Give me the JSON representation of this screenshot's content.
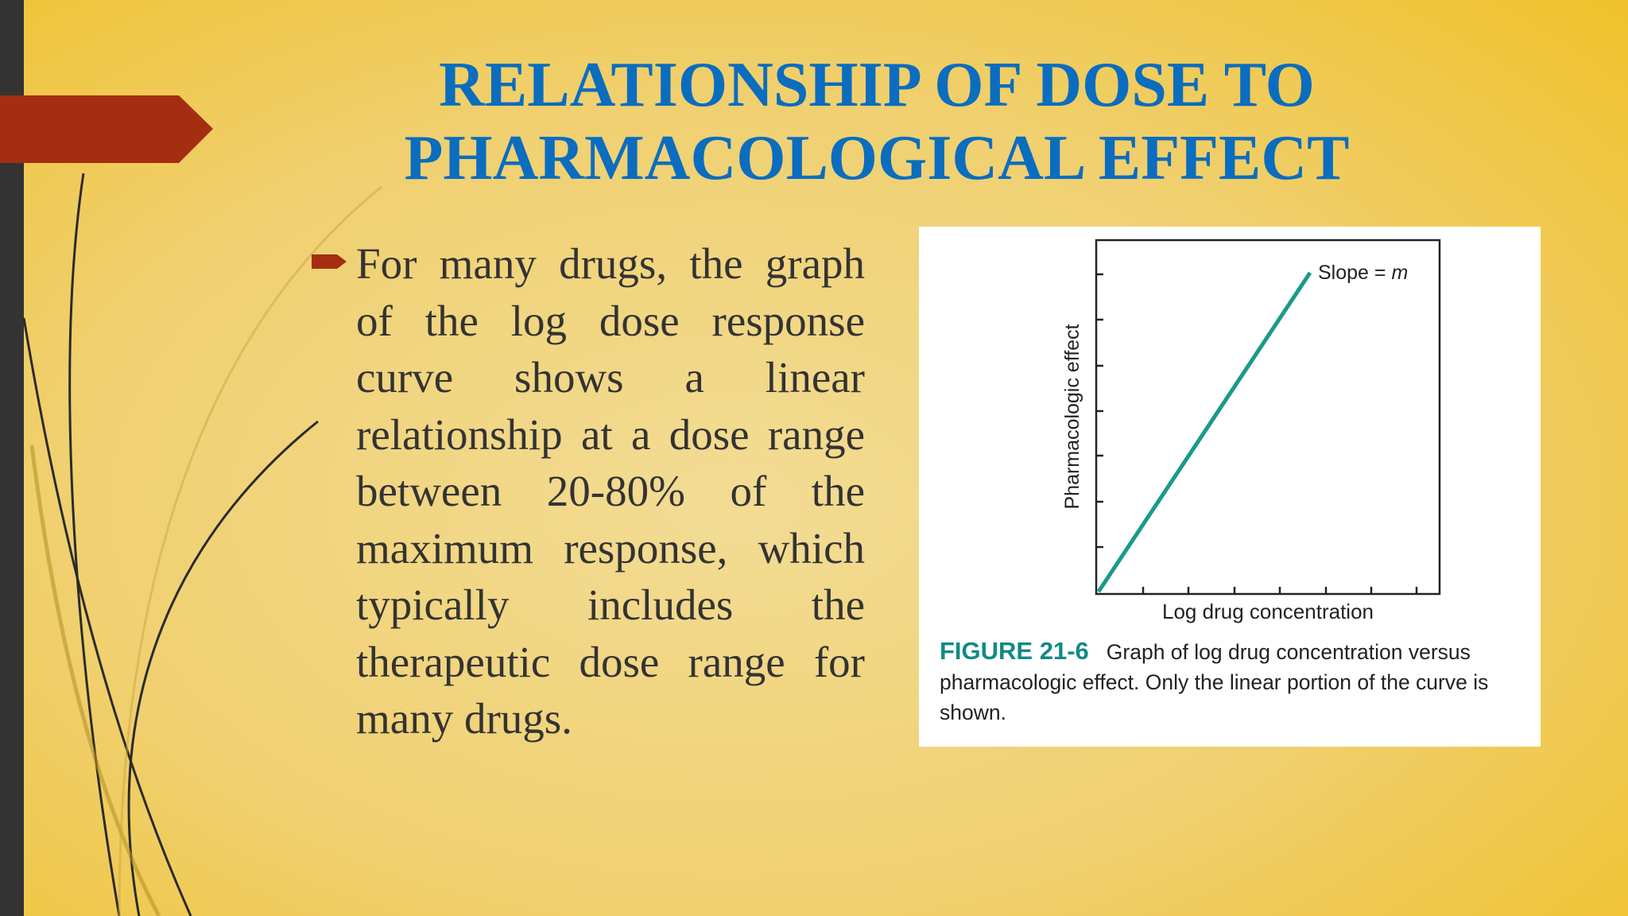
{
  "slide": {
    "title": [
      "RELATIONSHIP OF DOSE TO",
      "PHARMACOLOGICAL EFFECT"
    ],
    "body": "For many drugs, the graph of the log dose response curve shows a linear relationship at a dose range between 20-80% of the maximum response, which typically includes the therapeutic dose range for many drugs.",
    "figure": {
      "y_label": "Pharmacologic effect",
      "x_label": "Log drug concentration",
      "slope_label": "Slope =",
      "slope_symbol": "m",
      "caption_label": "FIGURE 21-6",
      "caption_text": "Graph of log drug concentration versus pharmacologic effect. Only the linear portion of the curve is shown."
    }
  }
}
